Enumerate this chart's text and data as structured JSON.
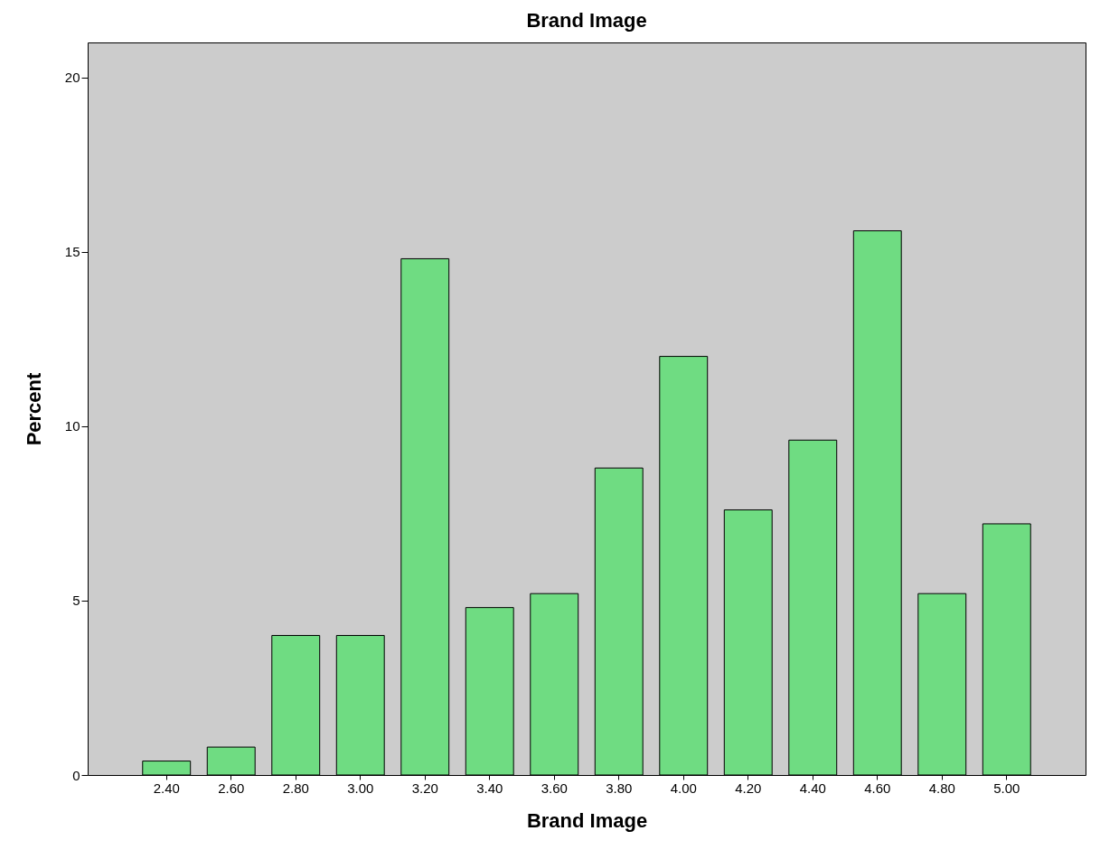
{
  "chart_data": {
    "type": "bar",
    "title": "Brand Image",
    "xlabel": "Brand Image",
    "ylabel": "Percent",
    "categories": [
      "2.40",
      "2.60",
      "2.80",
      "3.00",
      "3.20",
      "3.40",
      "3.60",
      "3.80",
      "4.00",
      "4.20",
      "4.40",
      "4.60",
      "4.80",
      "5.00"
    ],
    "values": [
      0.4,
      0.8,
      4.0,
      4.0,
      14.8,
      4.8,
      5.2,
      8.8,
      12.0,
      7.6,
      9.6,
      15.6,
      5.2,
      7.2
    ],
    "color": "#6fdc82",
    "ylim": [
      0,
      21
    ],
    "yticks": [
      0,
      5,
      10,
      15,
      20
    ],
    "grid": false
  }
}
